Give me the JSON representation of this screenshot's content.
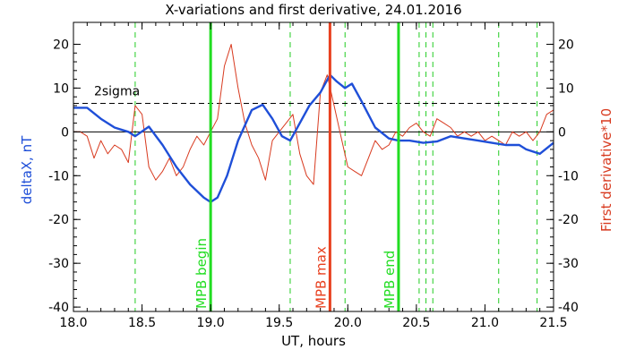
{
  "chart_data": {
    "type": "line",
    "title": "X-variations and first derivative, 24.01.2016",
    "xlabel": "UT, hours",
    "ylabel_left": "deltaX, nT",
    "ylabel_right": "First derivative*10",
    "xlim": [
      18.0,
      21.5
    ],
    "ylim": [
      -41,
      25
    ],
    "xticks": [
      "18.0",
      "18.5",
      "19.0",
      "19.5",
      "20.0",
      "20.5",
      "21.0",
      "21.5"
    ],
    "yticks": [
      "20",
      "10",
      "0",
      "-10",
      "-20",
      "-30",
      "-40"
    ],
    "grid": false,
    "colors": {
      "deltaX": "#1f4fd8",
      "derivative": "#d83a1f",
      "mpb_lines": "#22dd22",
      "mpb_max_line": "#e8401f",
      "zero_line": "#000000",
      "sigma_line": "#000000",
      "dashed_markers": "#22cc22"
    },
    "sigma_level": 6.5,
    "sigma_label": "2sigma",
    "vertical_markers": [
      {
        "x": 19.0,
        "label": "MPB begin",
        "kind": "mpb"
      },
      {
        "x": 19.87,
        "label": "MPB max",
        "kind": "max"
      },
      {
        "x": 20.37,
        "label": "MPB end",
        "kind": "mpb"
      }
    ],
    "dashed_markers": [
      18.45,
      19.58,
      19.98,
      20.52,
      20.57,
      20.62,
      21.1,
      21.38
    ],
    "series": [
      {
        "key": "deltaX",
        "x": [
          18.0,
          18.1,
          18.2,
          18.3,
          18.4,
          18.45,
          18.55,
          18.65,
          18.75,
          18.85,
          18.95,
          19.0,
          19.05,
          19.12,
          19.2,
          19.3,
          19.38,
          19.45,
          19.52,
          19.58,
          19.65,
          19.72,
          19.8,
          19.87,
          19.92,
          19.98,
          20.03,
          20.1,
          20.2,
          20.3,
          20.37,
          20.45,
          20.55,
          20.65,
          20.75,
          20.85,
          20.95,
          21.05,
          21.15,
          21.25,
          21.3,
          21.4,
          21.5
        ],
        "values": [
          5.5,
          5.5,
          3.0,
          1.0,
          0.0,
          -1.0,
          1.2,
          -3.0,
          -8.0,
          -12.0,
          -15.0,
          -16.0,
          -15.0,
          -10.0,
          -2.0,
          5.0,
          6.2,
          3.0,
          -1.0,
          -2.0,
          2.0,
          6.0,
          9.0,
          13.0,
          11.5,
          10.0,
          11.0,
          7.0,
          1.0,
          -1.5,
          -2.0,
          -2.0,
          -2.5,
          -2.2,
          -1.0,
          -1.5,
          -2.0,
          -2.5,
          -3.0,
          -3.0,
          -4.0,
          -5.0,
          -2.5
        ]
      },
      {
        "key": "derivative",
        "x": [
          18.0,
          18.05,
          18.1,
          18.15,
          18.2,
          18.25,
          18.3,
          18.35,
          18.4,
          18.45,
          18.5,
          18.55,
          18.6,
          18.65,
          18.7,
          18.75,
          18.8,
          18.85,
          18.9,
          18.95,
          19.0,
          19.05,
          19.1,
          19.15,
          19.2,
          19.25,
          19.3,
          19.35,
          19.4,
          19.45,
          19.5,
          19.55,
          19.6,
          19.65,
          19.7,
          19.75,
          19.8,
          19.85,
          19.9,
          19.95,
          20.0,
          20.05,
          20.1,
          20.15,
          20.2,
          20.25,
          20.3,
          20.35,
          20.4,
          20.45,
          20.5,
          20.55,
          20.6,
          20.65,
          20.7,
          20.75,
          20.8,
          20.85,
          20.9,
          20.95,
          21.0,
          21.05,
          21.1,
          21.15,
          21.2,
          21.25,
          21.3,
          21.35,
          21.4,
          21.45,
          21.5
        ],
        "values": [
          0,
          0,
          -1,
          -6,
          -2,
          -5,
          -3,
          -4,
          -7,
          6,
          4,
          -8,
          -11,
          -9,
          -6,
          -10,
          -8,
          -4,
          -1,
          -3,
          0,
          3,
          15,
          20,
          10,
          2,
          -3,
          -6,
          -11,
          -2,
          0,
          2,
          4,
          -5,
          -10,
          -12,
          9,
          13,
          6,
          -1,
          -8,
          -9,
          -10,
          -6,
          -2,
          -4,
          -3,
          0,
          -1,
          1,
          2,
          0,
          -1,
          3,
          2,
          1,
          -1,
          0,
          -1,
          0,
          -2,
          -1,
          -2,
          -3,
          0,
          -1,
          0,
          -2,
          0,
          4,
          5
        ]
      }
    ]
  }
}
